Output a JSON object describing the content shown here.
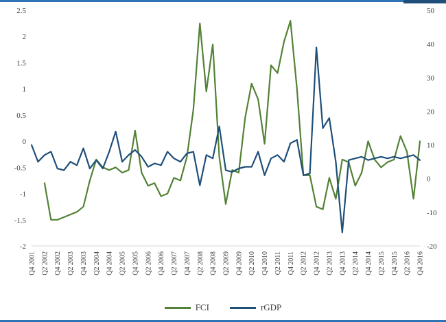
{
  "page": {
    "border_color": "#2e74b5",
    "border_accent_color": "#1f4e79",
    "text_color": "#404040"
  },
  "chart_data": {
    "type": "line",
    "title": "",
    "xlabel": "",
    "ylabel_left": "",
    "ylabel_right": "",
    "grid": false,
    "legend_position": "bottom",
    "categories": [
      "Q4 2001",
      "Q1 2002",
      "Q2 2002",
      "Q3 2002",
      "Q4 2002",
      "Q1 2003",
      "Q2 2003",
      "Q3 2003",
      "Q4 2003",
      "Q1 2004",
      "Q2 2004",
      "Q3 2004",
      "Q4 2004",
      "Q1 2005",
      "Q2 2005",
      "Q3 2005",
      "Q4 2005",
      "Q1 2006",
      "Q2 2006",
      "Q3 2006",
      "Q4 2006",
      "Q1 2007",
      "Q2 2007",
      "Q3 2007",
      "Q4 2007",
      "Q1 2008",
      "Q2 2008",
      "Q3 2008",
      "Q4 2008",
      "Q1 2009",
      "Q2 2009",
      "Q3 2009",
      "Q4 2009",
      "Q1 2010",
      "Q2 2010",
      "Q3 2010",
      "Q4 2010",
      "Q1 2011",
      "Q2 2011",
      "Q3 2011",
      "Q4 2011",
      "Q1 2012",
      "Q2 2012",
      "Q3 2012",
      "Q4 2012",
      "Q1 2013",
      "Q2 2013",
      "Q3 2013",
      "Q4 2013",
      "Q1 2014",
      "Q2 2014",
      "Q3 2014",
      "Q4 2014",
      "Q1 2015",
      "Q2 2015",
      "Q3 2015",
      "Q4 2015",
      "Q1 2016",
      "Q2 2016",
      "Q3 2016",
      "Q4 2016"
    ],
    "x_tick_interval": 2,
    "x_tick_labels": [
      "Q4 2001",
      "Q2 2002",
      "Q4 2002",
      "Q2 2003",
      "Q4 2003",
      "Q2 2004",
      "Q4 2004",
      "Q2 2005",
      "Q4 2005",
      "Q2 2006",
      "Q4 2006",
      "Q2 2007",
      "Q4 2007",
      "Q2 2008",
      "Q4 2008",
      "Q2 2009",
      "Q4 2009",
      "Q2 2010",
      "Q4 2010",
      "Q2 2011",
      "Q4 2011",
      "Q2 2012",
      "Q4 2012",
      "Q2 2013",
      "Q4 2013",
      "Q2 2014",
      "Q4 2014",
      "Q2 2015",
      "Q4 2015",
      "Q2 2016",
      "Q4 2016"
    ],
    "left_axis": {
      "min": -2,
      "max": 2.5,
      "step": 0.5,
      "ticks": [
        "2.5",
        "2",
        "1.5",
        "1",
        "0.5",
        "0",
        "-0.5",
        "-1",
        "-1.5",
        "-2"
      ]
    },
    "right_axis": {
      "min": -20,
      "max": 50,
      "step": 10,
      "ticks": [
        "50",
        "40",
        "30",
        "20",
        "10",
        "0",
        "-10",
        "-20"
      ]
    },
    "series": [
      {
        "name": "FCI",
        "axis": "left",
        "color": "#538135",
        "values": [
          null,
          null,
          -0.8,
          -1.5,
          -1.5,
          -1.45,
          -1.4,
          -1.35,
          -1.25,
          -0.75,
          -0.35,
          -0.5,
          -0.55,
          -0.5,
          -0.6,
          -0.55,
          0.2,
          -0.6,
          -0.85,
          -0.8,
          -1.05,
          -1.0,
          -0.7,
          -0.75,
          -0.3,
          0.6,
          2.25,
          0.95,
          1.85,
          -0.3,
          -1.2,
          -0.55,
          -0.6,
          0.45,
          1.1,
          0.8,
          -0.05,
          1.45,
          1.3,
          1.9,
          2.3,
          1.0,
          -0.65,
          -0.65,
          -1.25,
          -1.3,
          -0.7,
          -1.1,
          -0.35,
          -0.4,
          -0.85,
          -0.6,
          0.0,
          -0.35,
          -0.5,
          -0.4,
          -0.35,
          0.1,
          -0.2,
          -1.1,
          0.0
        ]
      },
      {
        "name": "rGDP",
        "axis": "right",
        "color": "#1f4e79",
        "values": [
          10,
          5,
          7,
          8,
          3,
          2.5,
          5,
          4,
          9,
          3,
          5.5,
          3,
          8,
          14,
          5,
          7,
          8.5,
          6.5,
          3.5,
          4.5,
          4,
          8,
          6,
          5,
          7.5,
          8,
          -2,
          7,
          6,
          15.5,
          2.5,
          2,
          3,
          3.5,
          3.5,
          8,
          1,
          6,
          7,
          5,
          10.5,
          11.5,
          1,
          1.5,
          39,
          15,
          18,
          5,
          -16,
          5.5,
          6,
          6.5,
          5.5,
          6,
          6.5,
          6,
          6.5,
          6,
          6.5,
          7,
          5.5
        ]
      }
    ],
    "legend_entries": [
      "FCI",
      "rGDP"
    ]
  }
}
